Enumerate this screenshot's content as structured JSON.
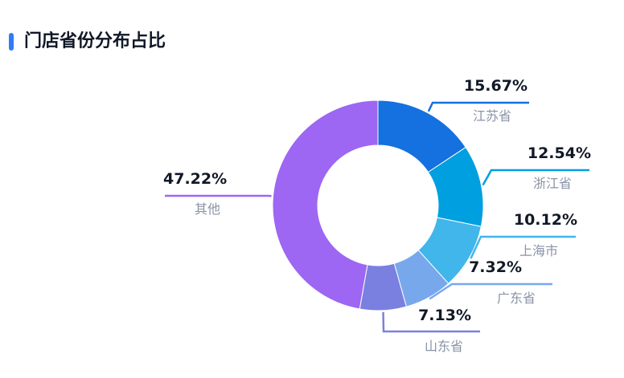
{
  "header": {
    "title": "门店省份分布占比",
    "accent_color": "#2f7cf6"
  },
  "chart_data": {
    "type": "pie",
    "variant": "donut",
    "title": "门店省份分布占比",
    "unit": "%",
    "legend": "none",
    "categories": [
      "江苏省",
      "浙江省",
      "上海市",
      "广东省",
      "山东省",
      "其他"
    ],
    "values": [
      15.67,
      12.54,
      10.12,
      7.32,
      7.13,
      47.22
    ],
    "labels": [
      "15.67%",
      "12.54%",
      "10.12%",
      "7.32%",
      "7.13%",
      "47.22%"
    ],
    "colors": [
      "#1570e0",
      "#009fdf",
      "#40b6ea",
      "#78a8ec",
      "#7a80e0",
      "#9d66f3"
    ]
  }
}
